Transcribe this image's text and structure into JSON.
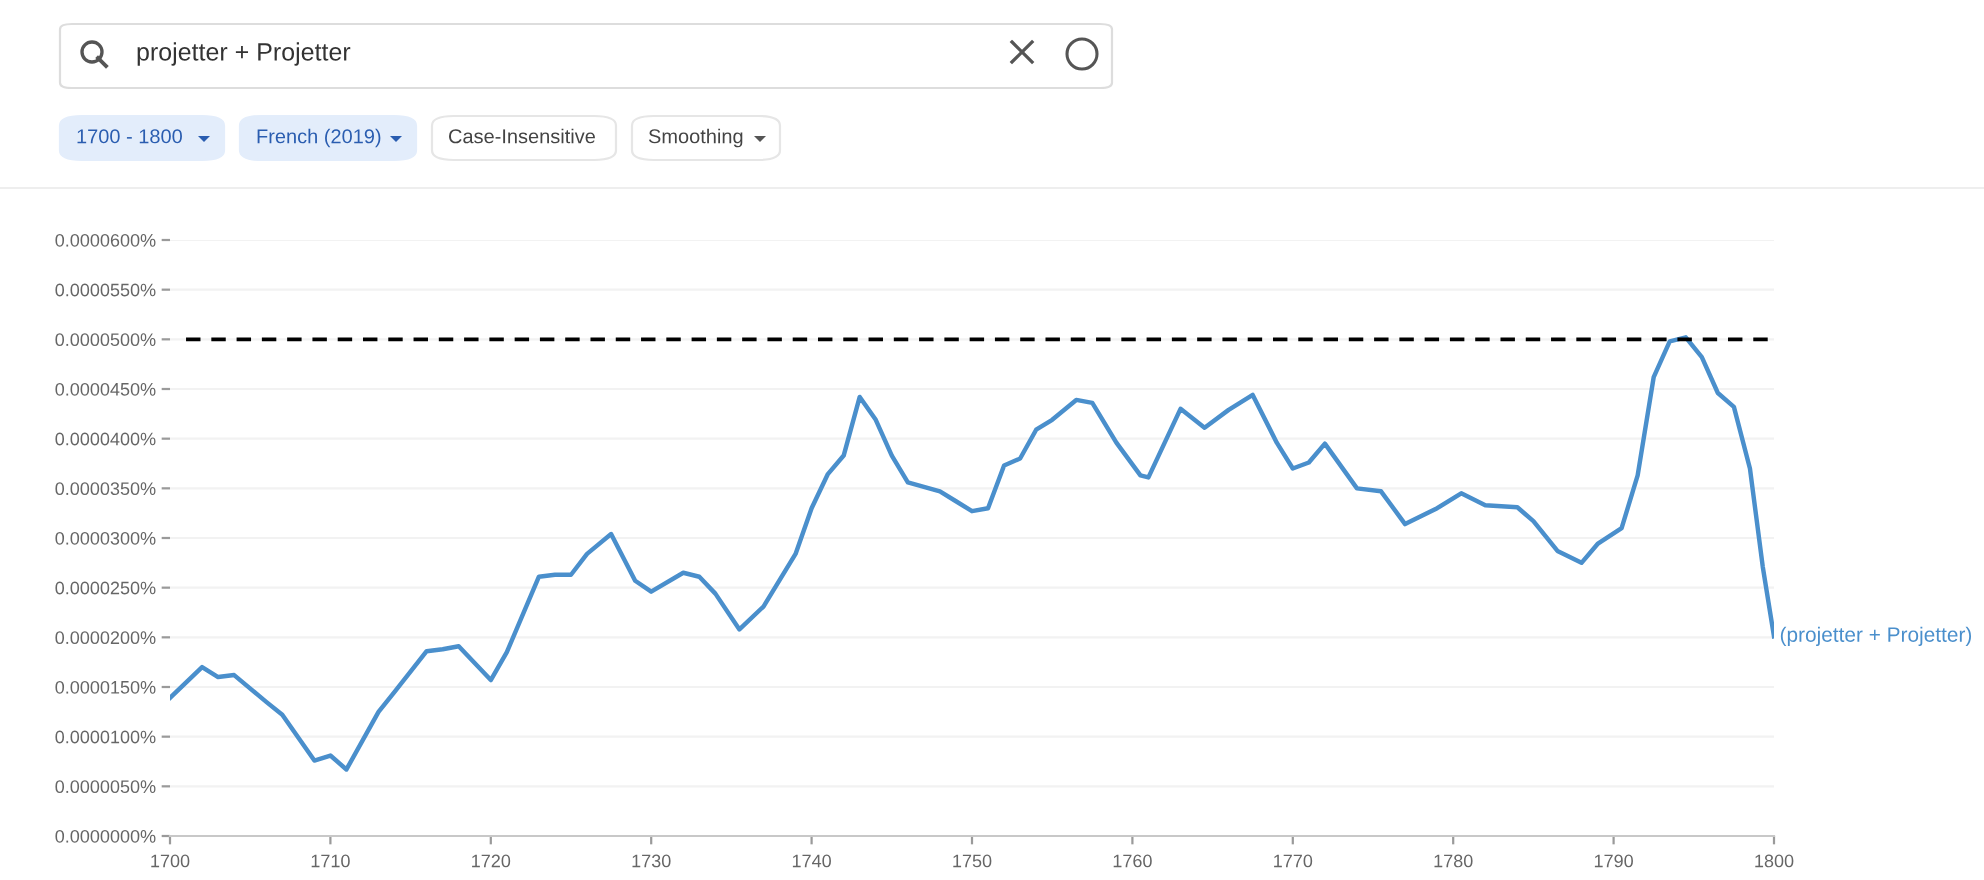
{
  "chart_data": {
    "type": "line",
    "x": [
      1700,
      1702,
      1703,
      1704,
      1706,
      1707,
      1709,
      1710,
      1711,
      1713,
      1714,
      1716,
      1717,
      1718,
      1720,
      1721,
      1723,
      1724,
      1725,
      1726,
      1727.5,
      1729,
      1730,
      1732,
      1733,
      1734,
      1735.5,
      1737,
      1739,
      1740,
      1741,
      1742,
      1743,
      1744,
      1745,
      1746,
      1748,
      1749,
      1750,
      1751,
      1752,
      1753,
      1754,
      1755,
      1756.5,
      1757.5,
      1759,
      1760.5,
      1761,
      1763,
      1764.5,
      1766,
      1767.5,
      1769,
      1770,
      1771,
      1772,
      1774,
      1775.5,
      1777,
      1779,
      1780.5,
      1782,
      1784,
      1785,
      1786.5,
      1788,
      1789,
      1790.5,
      1791.5,
      1792.5,
      1793.5,
      1794.5,
      1795.5,
      1796.5,
      1797.5,
      1798.5,
      1799.3,
      1800
    ],
    "series": [
      {
        "name": "(projetter + Projetter)",
        "color": "#4a8fcc",
        "values": [
          1.39e-05,
          1.7e-05,
          1.6e-05,
          1.62e-05,
          1.35e-05,
          1.22e-05,
          7.6e-06,
          8.1e-06,
          6.7e-06,
          1.25e-05,
          1.45e-05,
          1.86e-05,
          1.88e-05,
          1.91e-05,
          1.57e-05,
          1.85e-05,
          2.61e-05,
          2.63e-05,
          2.63e-05,
          2.84e-05,
          3.04e-05,
          2.57e-05,
          2.46e-05,
          2.65e-05,
          2.61e-05,
          2.44e-05,
          2.08e-05,
          2.31e-05,
          2.84e-05,
          3.3e-05,
          3.64e-05,
          3.83e-05,
          4.42e-05,
          4.19e-05,
          3.83e-05,
          3.56e-05,
          3.47e-05,
          3.37e-05,
          3.27e-05,
          3.3e-05,
          3.73e-05,
          3.8e-05,
          4.09e-05,
          4.19e-05,
          4.39e-05,
          4.36e-05,
          3.96e-05,
          3.63e-05,
          3.61e-05,
          4.3e-05,
          4.11e-05,
          4.29e-05,
          4.44e-05,
          3.96e-05,
          3.7e-05,
          3.76e-05,
          3.95e-05,
          3.5e-05,
          3.47e-05,
          3.14e-05,
          3.3e-05,
          3.45e-05,
          3.33e-05,
          3.31e-05,
          3.17e-05,
          2.87e-05,
          2.75e-05,
          2.94e-05,
          3.1e-05,
          3.63e-05,
          4.62e-05,
          4.98e-05,
          5.02e-05,
          4.82e-05,
          4.46e-05,
          4.32e-05,
          3.7e-05,
          2.71e-05,
          2.01e-05
        ]
      }
    ],
    "xlim": [
      1700,
      1800
    ],
    "xticks": [
      1700,
      1710,
      1720,
      1730,
      1740,
      1750,
      1760,
      1770,
      1780,
      1790,
      1800
    ],
    "ylim": [
      0,
      6e-05
    ],
    "yticks": [
      {
        "value": 0,
        "label": "0.0000000%"
      },
      {
        "value": 5e-06,
        "label": "0.0000050%"
      },
      {
        "value": 1e-05,
        "label": "0.0000100%"
      },
      {
        "value": 1.5e-05,
        "label": "0.0000150%"
      },
      {
        "value": 2e-05,
        "label": "0.0000200%"
      },
      {
        "value": 2.5e-05,
        "label": "0.0000250%"
      },
      {
        "value": 3e-05,
        "label": "0.0000300%"
      },
      {
        "value": 3.5e-05,
        "label": "0.0000350%"
      },
      {
        "value": 4e-05,
        "label": "0.0000400%"
      },
      {
        "value": 4.5e-05,
        "label": "0.0000450%"
      },
      {
        "value": 5e-05,
        "label": "0.0000500%"
      },
      {
        "value": 5.5e-05,
        "label": "0.0000550%"
      },
      {
        "value": 6e-05,
        "label": "0.0000600%"
      }
    ],
    "ref_lines": [
      {
        "axis": "y",
        "value": 5e-05,
        "color": "#000000",
        "line_style": "dashed"
      }
    ],
    "grid": "y",
    "legend": false,
    "marker": "none",
    "line_style": "solid",
    "annotations": [
      "projetter + Projetter",
      "1700 - 1800",
      "French (2019)",
      "Case-Insensitive",
      "Smoothing"
    ]
  }
}
